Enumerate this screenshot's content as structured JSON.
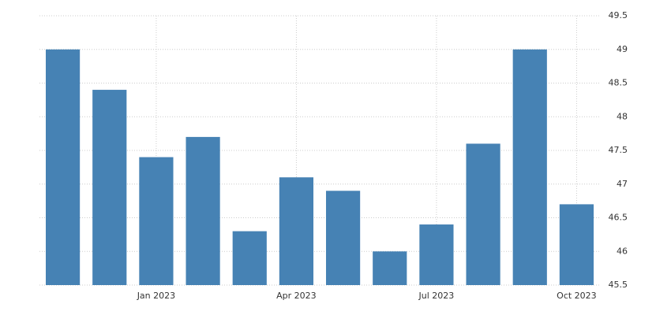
{
  "chart_data": {
    "type": "bar",
    "categories": [
      null,
      null,
      "Jan 2023",
      null,
      null,
      "Apr 2023",
      null,
      null,
      "Jul 2023",
      null,
      null,
      "Oct 2023"
    ],
    "values": [
      49,
      48.4,
      47.4,
      47.7,
      46.3,
      47.1,
      46.9,
      46,
      46.4,
      47.6,
      49,
      46.7
    ],
    "color": "#4682b4",
    "ylim": [
      45.5,
      49.5
    ],
    "yticks": [
      45.5,
      46,
      46.5,
      47,
      47.5,
      48,
      48.5,
      49,
      49.5
    ],
    "grid": true
  }
}
